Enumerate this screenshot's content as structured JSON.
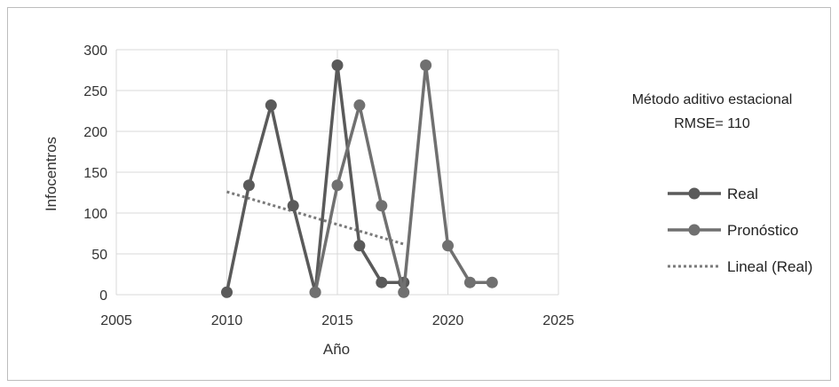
{
  "chart_data": {
    "type": "line",
    "xlabel": "Año",
    "ylabel": "Infocentros",
    "xlim": [
      2005,
      2025
    ],
    "ylim": [
      0,
      300
    ],
    "xticks": [
      "2005",
      "2010",
      "2015",
      "2020",
      "2025"
    ],
    "yticks": [
      "0",
      "50",
      "100",
      "150",
      "200",
      "250",
      "300"
    ],
    "grid": true,
    "series": [
      {
        "name": "Real",
        "color": "#5a5a5a",
        "x": [
          2010,
          2011,
          2012,
          2013,
          2014,
          2015,
          2016,
          2017,
          2018
        ],
        "y": [
          3,
          134,
          232,
          109,
          3,
          281,
          60,
          15,
          15
        ]
      },
      {
        "name": "Pronóstico",
        "color": "#707070",
        "x": [
          2014,
          2015,
          2016,
          2017,
          2018,
          2019,
          2020,
          2021,
          2022
        ],
        "y": [
          3,
          134,
          232,
          109,
          3,
          281,
          60,
          15,
          15
        ]
      }
    ],
    "trendline": {
      "name": "Lineal (Real)",
      "color": "#7a7a7a",
      "x": [
        2010,
        2018
      ],
      "y": [
        126,
        62
      ]
    },
    "annotation": {
      "line1": "Método aditivo estacional",
      "line2": "RMSE= 110"
    },
    "legend_position": "right"
  }
}
